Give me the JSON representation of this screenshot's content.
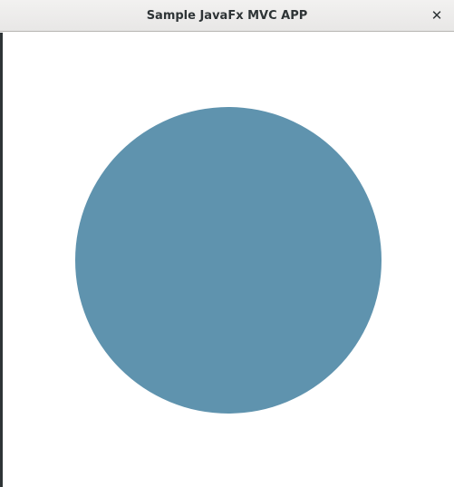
{
  "window": {
    "title": "Sample JavaFx MVC APP",
    "close_label": "✕"
  },
  "scene": {
    "shape": "circle",
    "fill_color": "#5f93ae",
    "background_color": "#ffffff"
  }
}
